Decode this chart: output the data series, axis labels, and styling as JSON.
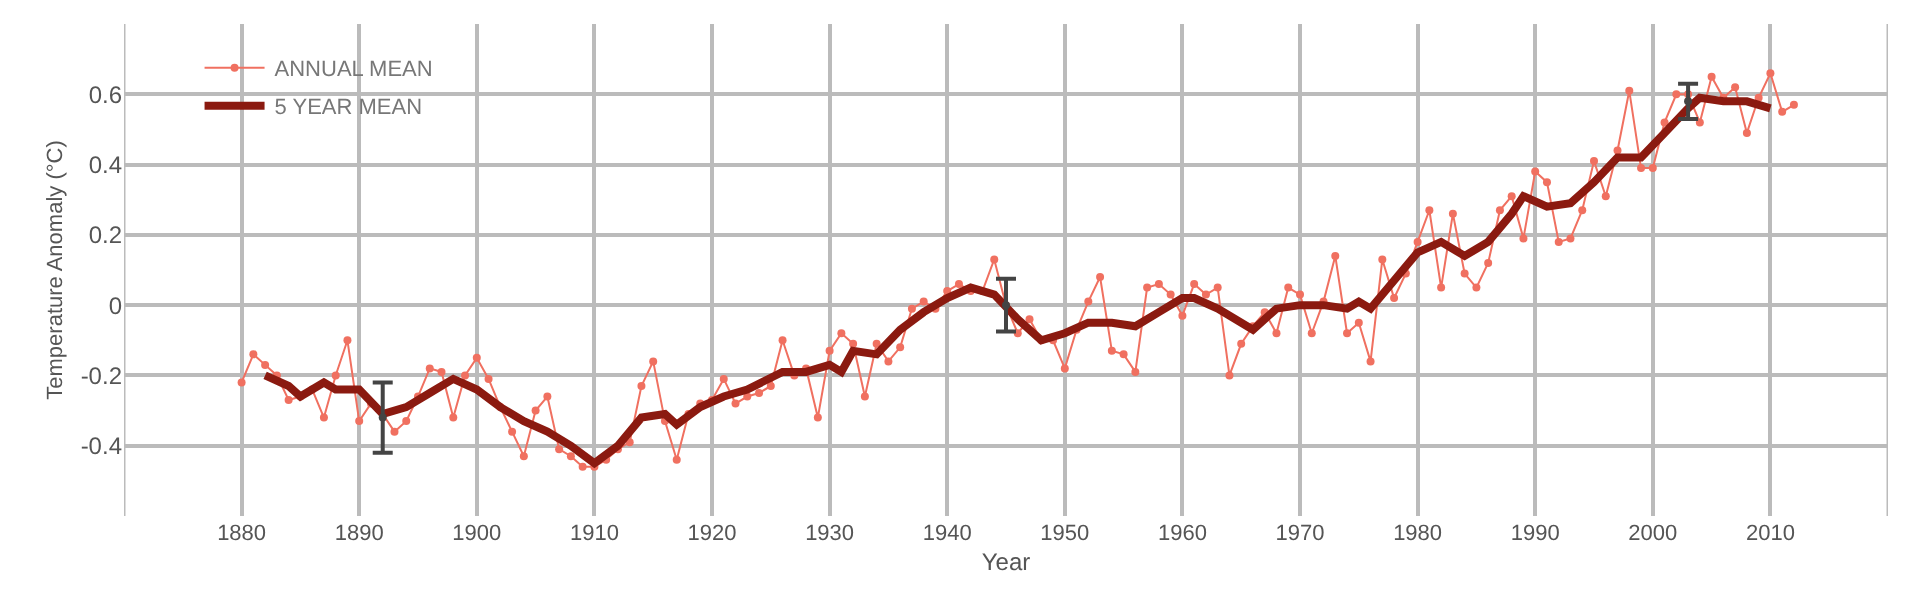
{
  "chart_data": {
    "type": "line",
    "xlabel": "Year",
    "ylabel": "Temperature Anomaly (°C)",
    "xlim": [
      1870,
      2020
    ],
    "xticks": [
      {
        "value": 1870,
        "label": null
      },
      1880,
      1890,
      1900,
      1910,
      1920,
      1930,
      1940,
      1950,
      1960,
      1970,
      1980,
      1990,
      2000,
      2010,
      {
        "value": 2020,
        "label": null
      }
    ],
    "ylim": [
      -0.6,
      0.8
    ],
    "yticks": [
      -0.4,
      -0.2,
      0,
      0.2,
      0.4,
      0.6
    ],
    "grid": true,
    "legend": "top left",
    "series": [
      {
        "name": "ANNUAL MEAN",
        "color": "#f07060",
        "marker": "circle",
        "x": [
          1880,
          1881,
          1882,
          1883,
          1884,
          1885,
          1886,
          1887,
          1888,
          1889,
          1890,
          1891,
          1892,
          1893,
          1894,
          1895,
          1896,
          1897,
          1898,
          1899,
          1900,
          1901,
          1902,
          1903,
          1904,
          1905,
          1906,
          1907,
          1908,
          1909,
          1910,
          1911,
          1912,
          1913,
          1914,
          1915,
          1916,
          1917,
          1918,
          1919,
          1920,
          1921,
          1922,
          1923,
          1924,
          1925,
          1926,
          1927,
          1928,
          1929,
          1930,
          1931,
          1932,
          1933,
          1934,
          1935,
          1936,
          1937,
          1938,
          1939,
          1940,
          1941,
          1942,
          1943,
          1944,
          1945,
          1946,
          1947,
          1948,
          1949,
          1950,
          1951,
          1952,
          1953,
          1954,
          1955,
          1956,
          1957,
          1958,
          1959,
          1960,
          1961,
          1962,
          1963,
          1964,
          1965,
          1966,
          1967,
          1968,
          1969,
          1970,
          1971,
          1972,
          1973,
          1974,
          1975,
          1976,
          1977,
          1978,
          1979,
          1980,
          1981,
          1982,
          1983,
          1984,
          1985,
          1986,
          1987,
          1988,
          1989,
          1990,
          1991,
          1992,
          1993,
          1994,
          1995,
          1996,
          1997,
          1998,
          1999,
          2000,
          2001,
          2002,
          2003,
          2004,
          2005,
          2006,
          2007,
          2008,
          2009,
          2010,
          2011,
          2012
        ],
        "values": [
          -0.22,
          -0.14,
          -0.17,
          -0.2,
          -0.27,
          -0.26,
          -0.24,
          -0.32,
          -0.2,
          -0.1,
          -0.33,
          -0.28,
          -0.31,
          -0.36,
          -0.33,
          -0.26,
          -0.18,
          -0.19,
          -0.32,
          -0.2,
          -0.15,
          -0.21,
          -0.29,
          -0.36,
          -0.43,
          -0.3,
          -0.26,
          -0.41,
          -0.43,
          -0.46,
          -0.46,
          -0.44,
          -0.41,
          -0.39,
          -0.23,
          -0.16,
          -0.33,
          -0.44,
          -0.31,
          -0.28,
          -0.27,
          -0.21,
          -0.28,
          -0.26,
          -0.25,
          -0.23,
          -0.1,
          -0.2,
          -0.18,
          -0.32,
          -0.13,
          -0.08,
          -0.11,
          -0.26,
          -0.11,
          -0.16,
          -0.12,
          -0.01,
          0.01,
          -0.01,
          0.04,
          0.06,
          0.04,
          0.04,
          0.13,
          0.0,
          -0.08,
          -0.04,
          -0.1,
          -0.1,
          -0.18,
          -0.07,
          0.01,
          0.08,
          -0.13,
          -0.14,
          -0.19,
          0.05,
          0.06,
          0.03,
          -0.03,
          0.06,
          0.03,
          0.05,
          -0.2,
          -0.11,
          -0.06,
          -0.02,
          -0.08,
          0.05,
          0.03,
          -0.08,
          0.01,
          0.14,
          -0.08,
          -0.05,
          -0.16,
          0.13,
          0.02,
          0.09,
          0.18,
          0.27,
          0.05,
          0.26,
          0.09,
          0.05,
          0.12,
          0.27,
          0.31,
          0.19,
          0.38,
          0.35,
          0.18,
          0.19,
          0.27,
          0.41,
          0.31,
          0.44,
          0.61,
          0.39,
          0.39,
          0.52,
          0.6,
          0.6,
          0.52,
          0.65,
          0.59,
          0.62,
          0.49,
          0.59,
          0.66,
          0.55,
          0.57
        ]
      },
      {
        "name": "5 YEAR MEAN",
        "color": "#8b1a10",
        "marker": "none",
        "x": [
          1882,
          1884,
          1885,
          1887,
          1888,
          1890,
          1892,
          1894,
          1896,
          1898,
          1900,
          1902,
          1904,
          1906,
          1908,
          1910,
          1912,
          1914,
          1916,
          1917,
          1919,
          1921,
          1923,
          1926,
          1928,
          1930,
          1931,
          1932,
          1934,
          1936,
          1938,
          1940,
          1942,
          1944,
          1946,
          1948,
          1950,
          1952,
          1954,
          1956,
          1958,
          1960,
          1961,
          1963,
          1966,
          1968,
          1970,
          1972,
          1974,
          1975,
          1976,
          1978,
          1980,
          1982,
          1984,
          1986,
          1988,
          1989,
          1991,
          1993,
          1995,
          1997,
          1999,
          2001,
          2003,
          2004,
          2006,
          2008,
          2010
        ],
        "values": [
          -0.2,
          -0.23,
          -0.26,
          -0.22,
          -0.24,
          -0.24,
          -0.31,
          -0.29,
          -0.25,
          -0.21,
          -0.24,
          -0.29,
          -0.33,
          -0.36,
          -0.4,
          -0.45,
          -0.4,
          -0.32,
          -0.31,
          -0.34,
          -0.29,
          -0.26,
          -0.24,
          -0.19,
          -0.19,
          -0.17,
          -0.19,
          -0.13,
          -0.14,
          -0.07,
          -0.02,
          0.02,
          0.05,
          0.03,
          -0.04,
          -0.1,
          -0.08,
          -0.05,
          -0.05,
          -0.06,
          -0.02,
          0.02,
          0.02,
          -0.01,
          -0.07,
          -0.01,
          0.0,
          0.0,
          -0.01,
          0.01,
          -0.01,
          0.07,
          0.15,
          0.18,
          0.14,
          0.18,
          0.26,
          0.31,
          0.28,
          0.29,
          0.35,
          0.42,
          0.42,
          0.49,
          0.56,
          0.59,
          0.58,
          0.58,
          0.56
        ]
      },
      {
        "type": "scatter",
        "color": "#444444",
        "marker": "circle",
        "x": [
          1892,
          1945,
          2003
        ],
        "values": [
          -0.32,
          0.0,
          0.58
        ],
        "errors": [
          0.1,
          0.075,
          0.05
        ]
      }
    ]
  }
}
